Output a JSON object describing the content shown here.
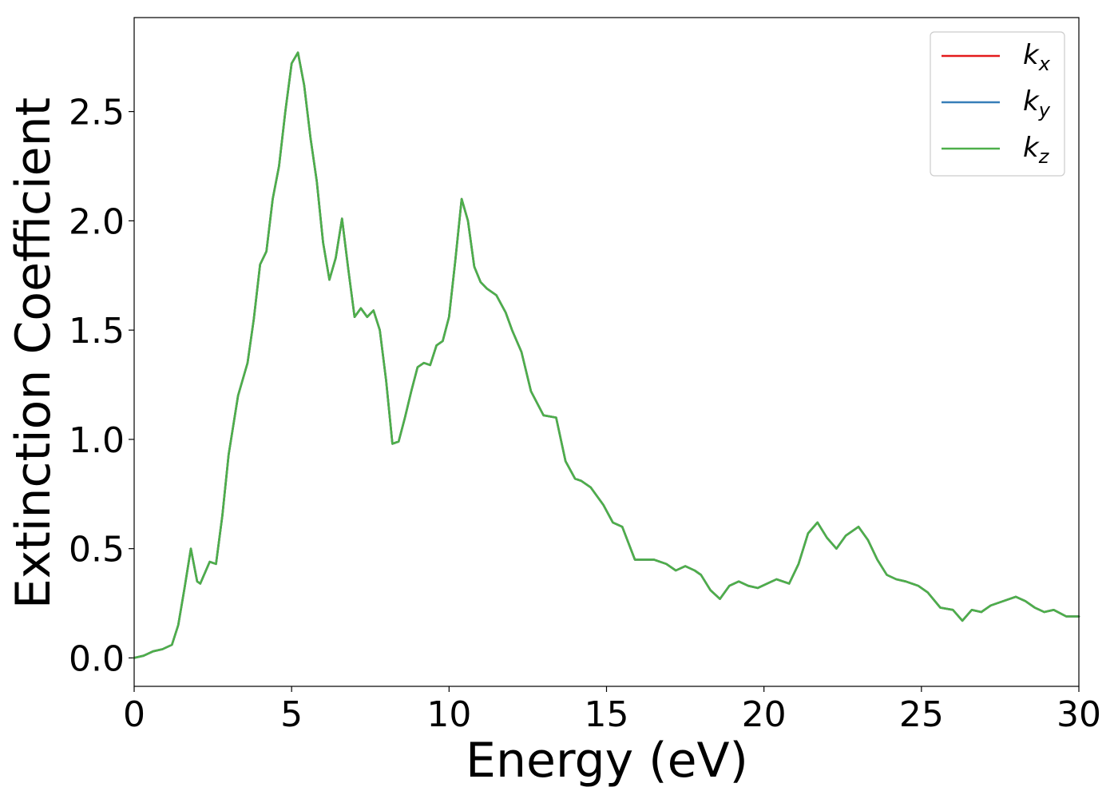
{
  "chart_data": {
    "type": "line",
    "title": "",
    "xlabel": "Energy (eV)",
    "ylabel": "Extinction Coefficient",
    "xlim": [
      0,
      30
    ],
    "ylim": [
      -0.13,
      2.93
    ],
    "xticks": [
      0,
      5,
      10,
      15,
      20,
      25,
      30
    ],
    "xtick_labels": [
      "0",
      "5",
      "10",
      "15",
      "20",
      "25",
      "30"
    ],
    "yticks": [
      0.0,
      0.5,
      1.0,
      1.5,
      2.0,
      2.5
    ],
    "ytick_labels": [
      "0.0",
      "0.5",
      "1.0",
      "1.5",
      "2.0",
      "2.5"
    ],
    "grid": false,
    "legend_position": "top-right",
    "x": [
      0,
      0.3,
      0.6,
      0.9,
      1.2,
      1.4,
      1.6,
      1.8,
      2.0,
      2.1,
      2.4,
      2.6,
      2.8,
      3.0,
      3.3,
      3.6,
      3.8,
      4.0,
      4.2,
      4.4,
      4.6,
      4.8,
      5.0,
      5.2,
      5.4,
      5.6,
      5.8,
      6.0,
      6.2,
      6.4,
      6.6,
      6.8,
      7.0,
      7.2,
      7.4,
      7.6,
      7.8,
      8.0,
      8.2,
      8.4,
      8.6,
      8.8,
      9.0,
      9.2,
      9.4,
      9.6,
      9.8,
      10.0,
      10.2,
      10.4,
      10.6,
      10.8,
      11.0,
      11.2,
      11.5,
      11.8,
      12.0,
      12.3,
      12.6,
      13.0,
      13.4,
      13.7,
      14.0,
      14.2,
      14.5,
      14.9,
      15.2,
      15.5,
      15.9,
      16.2,
      16.5,
      16.9,
      17.2,
      17.5,
      17.8,
      18.0,
      18.3,
      18.6,
      18.9,
      19.2,
      19.5,
      19.8,
      20.1,
      20.4,
      20.8,
      21.1,
      21.4,
      21.7,
      22.0,
      22.3,
      22.6,
      23.0,
      23.3,
      23.6,
      23.9,
      24.2,
      24.5,
      24.9,
      25.2,
      25.6,
      26.0,
      26.3,
      26.6,
      26.9,
      27.2,
      27.6,
      28.0,
      28.3,
      28.6,
      28.9,
      29.2,
      29.6,
      30.0
    ],
    "series": [
      {
        "name": "k_x",
        "label_base": "k",
        "label_sub": "x",
        "color": "#e41a1c",
        "values": [
          0.0,
          0.01,
          0.03,
          0.04,
          0.06,
          0.15,
          0.32,
          0.5,
          0.35,
          0.34,
          0.44,
          0.43,
          0.65,
          0.93,
          1.2,
          1.35,
          1.55,
          1.8,
          1.86,
          2.1,
          2.25,
          2.5,
          2.72,
          2.77,
          2.62,
          2.38,
          2.18,
          1.9,
          1.73,
          1.83,
          2.01,
          1.78,
          1.56,
          1.6,
          1.56,
          1.59,
          1.5,
          1.27,
          0.98,
          0.99,
          1.1,
          1.22,
          1.33,
          1.35,
          1.34,
          1.43,
          1.45,
          1.56,
          1.82,
          2.1,
          2.0,
          1.79,
          1.72,
          1.69,
          1.66,
          1.58,
          1.5,
          1.4,
          1.22,
          1.11,
          1.1,
          0.9,
          0.82,
          0.81,
          0.78,
          0.7,
          0.62,
          0.6,
          0.45,
          0.45,
          0.45,
          0.43,
          0.4,
          0.42,
          0.4,
          0.38,
          0.31,
          0.27,
          0.33,
          0.35,
          0.33,
          0.32,
          0.34,
          0.36,
          0.34,
          0.43,
          0.57,
          0.62,
          0.55,
          0.5,
          0.56,
          0.6,
          0.54,
          0.45,
          0.38,
          0.36,
          0.35,
          0.33,
          0.3,
          0.23,
          0.22,
          0.17,
          0.22,
          0.21,
          0.24,
          0.26,
          0.28,
          0.26,
          0.23,
          0.21,
          0.22,
          0.19,
          0.19
        ]
      },
      {
        "name": "k_y",
        "label_base": "k",
        "label_sub": "y",
        "color": "#377eb8",
        "values": [
          0.0,
          0.01,
          0.03,
          0.04,
          0.06,
          0.15,
          0.32,
          0.5,
          0.35,
          0.34,
          0.44,
          0.43,
          0.65,
          0.93,
          1.2,
          1.35,
          1.55,
          1.8,
          1.86,
          2.1,
          2.25,
          2.5,
          2.72,
          2.77,
          2.62,
          2.38,
          2.18,
          1.9,
          1.73,
          1.83,
          2.01,
          1.78,
          1.56,
          1.6,
          1.56,
          1.59,
          1.5,
          1.27,
          0.98,
          0.99,
          1.1,
          1.22,
          1.33,
          1.35,
          1.34,
          1.43,
          1.45,
          1.56,
          1.82,
          2.1,
          2.0,
          1.79,
          1.72,
          1.69,
          1.66,
          1.58,
          1.5,
          1.4,
          1.22,
          1.11,
          1.1,
          0.9,
          0.82,
          0.81,
          0.78,
          0.7,
          0.62,
          0.6,
          0.45,
          0.45,
          0.45,
          0.43,
          0.4,
          0.42,
          0.4,
          0.38,
          0.31,
          0.27,
          0.33,
          0.35,
          0.33,
          0.32,
          0.34,
          0.36,
          0.34,
          0.43,
          0.57,
          0.62,
          0.55,
          0.5,
          0.56,
          0.6,
          0.54,
          0.45,
          0.38,
          0.36,
          0.35,
          0.33,
          0.3,
          0.23,
          0.22,
          0.17,
          0.22,
          0.21,
          0.24,
          0.26,
          0.28,
          0.26,
          0.23,
          0.21,
          0.22,
          0.19,
          0.19
        ]
      },
      {
        "name": "k_z",
        "label_base": "k",
        "label_sub": "z",
        "color": "#4daf4a",
        "values": [
          0.0,
          0.01,
          0.03,
          0.04,
          0.06,
          0.15,
          0.32,
          0.5,
          0.35,
          0.34,
          0.44,
          0.43,
          0.65,
          0.93,
          1.2,
          1.35,
          1.55,
          1.8,
          1.86,
          2.1,
          2.25,
          2.5,
          2.72,
          2.77,
          2.62,
          2.38,
          2.18,
          1.9,
          1.73,
          1.83,
          2.01,
          1.78,
          1.56,
          1.6,
          1.56,
          1.59,
          1.5,
          1.27,
          0.98,
          0.99,
          1.1,
          1.22,
          1.33,
          1.35,
          1.34,
          1.43,
          1.45,
          1.56,
          1.82,
          2.1,
          2.0,
          1.79,
          1.72,
          1.69,
          1.66,
          1.58,
          1.5,
          1.4,
          1.22,
          1.11,
          1.1,
          0.9,
          0.82,
          0.81,
          0.78,
          0.7,
          0.62,
          0.6,
          0.45,
          0.45,
          0.45,
          0.43,
          0.4,
          0.42,
          0.4,
          0.38,
          0.31,
          0.27,
          0.33,
          0.35,
          0.33,
          0.32,
          0.34,
          0.36,
          0.34,
          0.43,
          0.57,
          0.62,
          0.55,
          0.5,
          0.56,
          0.6,
          0.54,
          0.45,
          0.38,
          0.36,
          0.35,
          0.33,
          0.3,
          0.23,
          0.22,
          0.17,
          0.22,
          0.21,
          0.24,
          0.26,
          0.28,
          0.26,
          0.23,
          0.21,
          0.22,
          0.19,
          0.19
        ]
      }
    ]
  }
}
